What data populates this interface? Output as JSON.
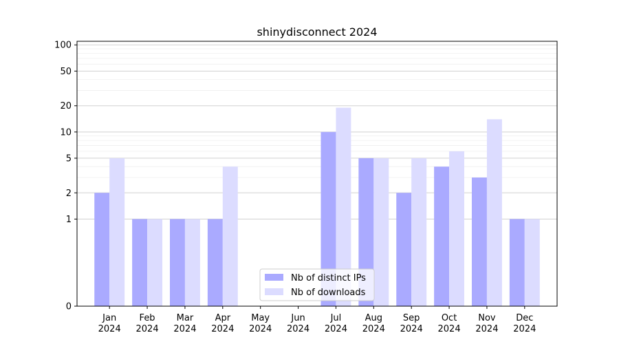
{
  "chart_data": {
    "type": "bar",
    "title": "shinydisconnect 2024",
    "xlabel": "",
    "ylabel": "",
    "y_scale": "symlog",
    "ylim": [
      0,
      110
    ],
    "y_ticks": [
      0,
      1,
      2,
      5,
      10,
      20,
      50,
      100
    ],
    "grid": true,
    "legend_position": "bottom-center",
    "categories": [
      [
        "Jan",
        "2024"
      ],
      [
        "Feb",
        "2024"
      ],
      [
        "Mar",
        "2024"
      ],
      [
        "Apr",
        "2024"
      ],
      [
        "May",
        "2024"
      ],
      [
        "Jun",
        "2024"
      ],
      [
        "Jul",
        "2024"
      ],
      [
        "Aug",
        "2024"
      ],
      [
        "Sep",
        "2024"
      ],
      [
        "Oct",
        "2024"
      ],
      [
        "Nov",
        "2024"
      ],
      [
        "Dec",
        "2024"
      ]
    ],
    "series": [
      {
        "name": "Nb of distinct IPs",
        "color": "#aaaaff",
        "values": [
          2,
          1,
          1,
          1,
          0,
          0,
          10,
          5,
          2,
          4,
          3,
          1
        ]
      },
      {
        "name": "Nb of downloads",
        "color": "#dcdcff",
        "values": [
          5,
          1,
          1,
          4,
          0,
          0,
          19,
          5,
          5,
          6,
          14,
          1
        ]
      }
    ]
  }
}
